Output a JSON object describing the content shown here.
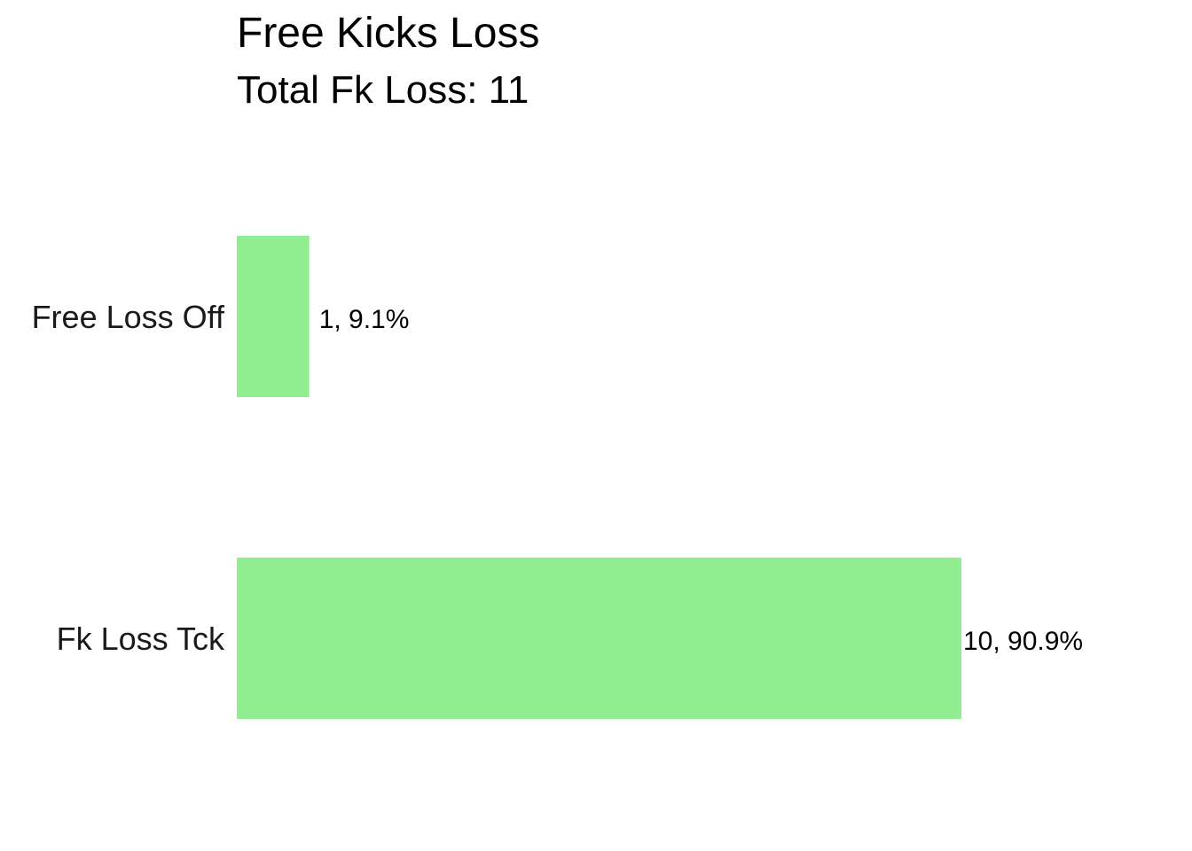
{
  "chart_data": {
    "type": "bar",
    "orientation": "horizontal",
    "title": "Free Kicks Loss",
    "subtitle": "Total Fk Loss: 11",
    "categories": [
      "Free Loss Off",
      "Fk Loss Tck"
    ],
    "values": [
      1,
      10
    ],
    "data_labels": [
      "1, 9.1%",
      "10, 90.9%"
    ],
    "xlim": [
      0,
      10
    ],
    "grid": false,
    "legend": "none",
    "bar_color": "#90EE90"
  }
}
